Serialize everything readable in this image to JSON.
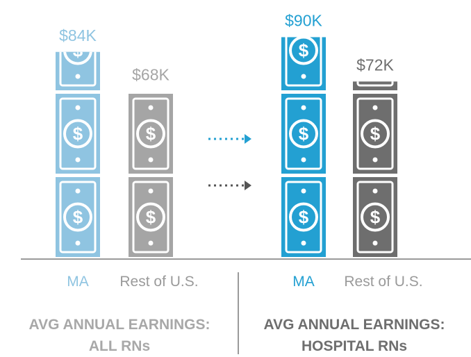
{
  "chart_data": {
    "type": "pictograph",
    "categories": [
      "AVG ANNUAL EARNINGS: ALL RNs",
      "AVG ANNUAL EARNINGS: HOSPITAL RNs"
    ],
    "series": [
      {
        "name": "MA",
        "colors": [
          "#8fc4e1",
          "#23a0d2"
        ],
        "values": [
          84,
          90
        ],
        "value_labels": [
          "$84K",
          "$90K"
        ]
      },
      {
        "name": "Rest of U.S.",
        "colors": [
          "#a5a5a5",
          "#6e6e6e"
        ],
        "values": [
          68,
          72
        ],
        "value_labels": [
          "$68K",
          "$72K"
        ]
      }
    ]
  }
}
